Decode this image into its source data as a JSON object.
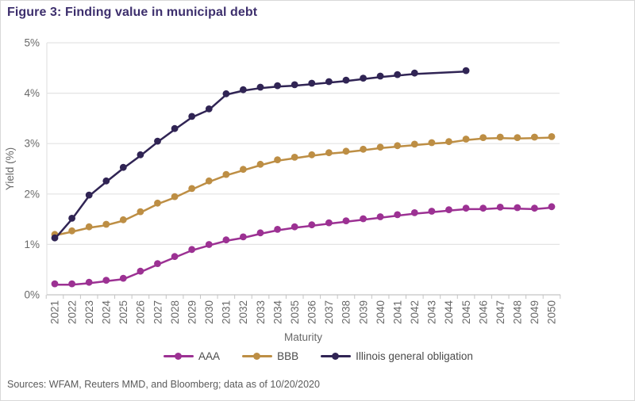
{
  "title": "Figure 3: Finding value in municipal debt",
  "source_note": "Sources: WFAM, Reuters MMD, and Bloomberg; data as of 10/20/2020",
  "colors": {
    "title": "#3d2f6d",
    "axis_text": "#696969",
    "gridline": "#e3e3e3",
    "axis_line": "#c4c4c4",
    "legend_text": "#4a4a4a",
    "aaa": "#9c3193",
    "bbb": "#bd8e44",
    "illinois": "#302454"
  },
  "chart_data": {
    "type": "line",
    "title": "Figure 3: Finding value in municipal debt",
    "xlabel": "Maturity",
    "ylabel": "Yield (%)",
    "ylim": [
      0,
      5
    ],
    "yticks": [
      0,
      1,
      2,
      3,
      4,
      5
    ],
    "ytick_labels": [
      "0%",
      "1%",
      "2%",
      "3%",
      "4%",
      "5%"
    ],
    "grid": "horizontal",
    "legend_position": "bottom",
    "categories": [
      "2021",
      "2022",
      "2023",
      "2024",
      "2025",
      "2026",
      "2027",
      "2028",
      "2029",
      "2030",
      "2031",
      "2032",
      "2033",
      "2034",
      "2035",
      "2036",
      "2037",
      "2038",
      "2039",
      "2040",
      "2041",
      "2042",
      "2043",
      "2044",
      "2045",
      "2046",
      "2047",
      "2048",
      "2049",
      "2050"
    ],
    "series": [
      {
        "name": "AAA",
        "color": "#9c3193",
        "values": [
          0.2,
          0.2,
          0.23,
          0.27,
          0.31,
          0.45,
          0.6,
          0.74,
          0.88,
          0.98,
          1.07,
          1.13,
          1.21,
          1.28,
          1.33,
          1.37,
          1.41,
          1.45,
          1.49,
          1.53,
          1.57,
          1.61,
          1.64,
          1.67,
          1.7,
          1.7,
          1.72,
          1.71,
          1.7,
          1.73
        ]
      },
      {
        "name": "BBB",
        "color": "#bd8e44",
        "values": [
          1.18,
          1.25,
          1.33,
          1.38,
          1.47,
          1.63,
          1.8,
          1.93,
          2.09,
          2.24,
          2.37,
          2.47,
          2.57,
          2.66,
          2.71,
          2.76,
          2.8,
          2.83,
          2.87,
          2.91,
          2.94,
          2.97,
          3.0,
          3.02,
          3.07,
          3.1,
          3.11,
          3.1,
          3.11,
          3.12
        ]
      },
      {
        "name": "Illinois general obligation",
        "color": "#302454",
        "values": [
          1.11,
          1.5,
          1.96,
          2.24,
          2.51,
          2.76,
          3.03,
          3.28,
          3.52,
          3.67,
          3.97,
          4.05,
          4.1,
          4.13,
          4.15,
          4.18,
          4.21,
          4.24,
          4.28,
          4.32,
          4.35,
          4.38,
          null,
          null,
          4.43,
          null,
          null,
          null,
          null,
          null
        ]
      }
    ]
  }
}
